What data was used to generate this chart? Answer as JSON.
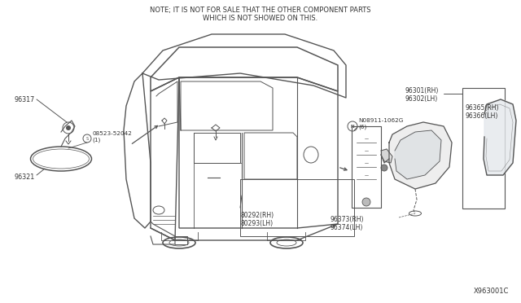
{
  "title_note_line1": "NOTE; IT IS NOT FOR SALE THAT THE OTHER COMPONENT PARTS",
  "title_note_line2": "WHICH IS NOT SHOWED ON THIS.",
  "diagram_id": "X963001C",
  "bg_color": "#ffffff",
  "line_color": "#555555",
  "text_color": "#333333",
  "label_fontsize": 5.8,
  "note_fontsize": 6.0
}
